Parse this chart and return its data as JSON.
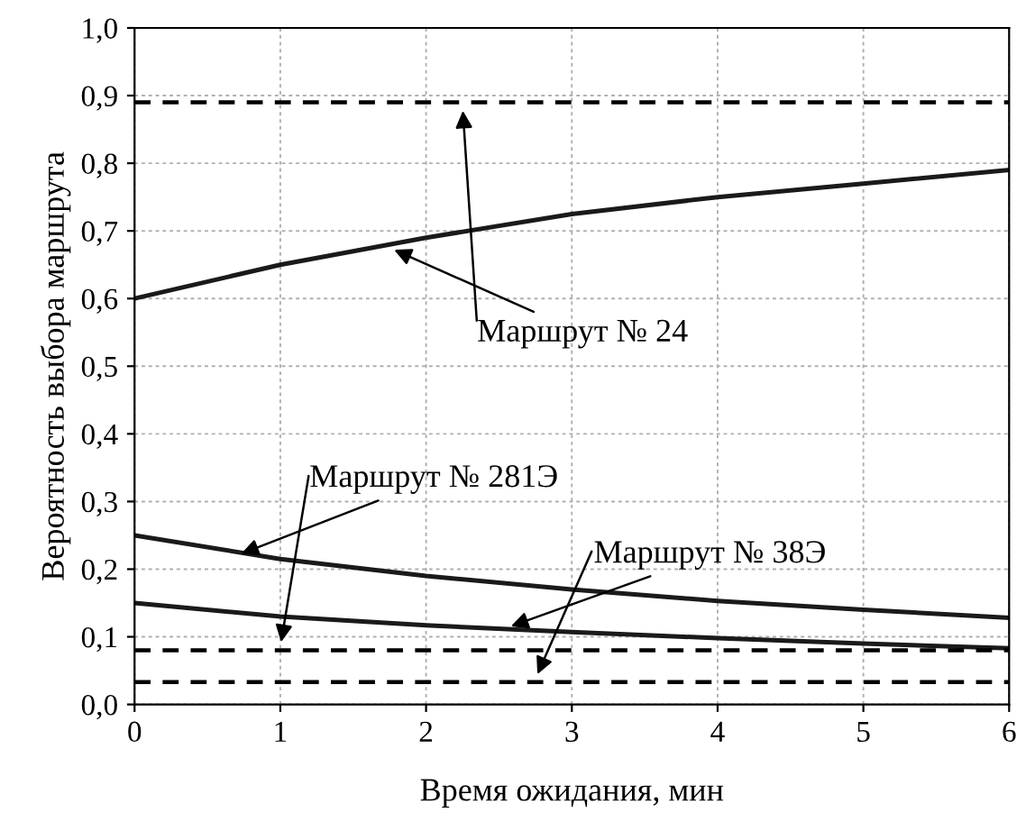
{
  "chart_data": {
    "type": "line",
    "xlabel": "Время ожидания, мин",
    "ylabel": "Вероятность выбора маршрута",
    "x": [
      0,
      1,
      2,
      3,
      4,
      5,
      6
    ],
    "series": [
      {
        "color": "#1a1a1a",
        "values": [
          0.6,
          0.65,
          0.69,
          0.725,
          0.75,
          0.77,
          0.79
        ]
      },
      {
        "color": "#1a1a1a",
        "values": [
          0.25,
          0.215,
          0.19,
          0.17,
          0.153,
          0.14,
          0.128
        ]
      },
      {
        "color": "#1a1a1a",
        "values": [
          0.15,
          0.13,
          0.117,
          0.107,
          0.098,
          0.09,
          0.083
        ]
      }
    ],
    "ref_lines": [
      {
        "axis": "y",
        "value": 0.89,
        "color": "#000000",
        "line_style": "dashed"
      },
      {
        "axis": "y",
        "value": 0.08,
        "color": "#000000",
        "line_style": "dashed"
      },
      {
        "axis": "y",
        "value": 0.033,
        "color": "#000000",
        "line_style": "dashed"
      }
    ],
    "annotations": [
      {
        "text": "Маршрут № 24",
        "x": 1.75,
        "y": 0.675
      },
      {
        "text": "Маршрут № 281Э",
        "x": 0.7,
        "y": 0.22
      },
      {
        "text": "Маршрут № 38Э",
        "x": 2.55,
        "y": 0.113
      }
    ],
    "xlim": [
      0,
      6
    ],
    "ylim": [
      0,
      1.0
    ],
    "xticks": [
      0,
      1,
      2,
      3,
      4,
      5,
      6
    ],
    "yticks": [
      {
        "value": 0,
        "label": "0,0"
      },
      {
        "value": 0.1,
        "label": "0,1"
      },
      {
        "value": 0.2,
        "label": "0,2"
      },
      {
        "value": 0.3,
        "label": "0,3"
      },
      {
        "value": 0.4,
        "label": "0,4"
      },
      {
        "value": 0.5,
        "label": "0,5"
      },
      {
        "value": 0.6,
        "label": "0,6"
      },
      {
        "value": 0.7,
        "label": "0,7"
      },
      {
        "value": 0.8,
        "label": "0,8"
      },
      {
        "value": 0.9,
        "label": "0,9"
      },
      {
        "value": 1.0,
        "label": "1,0"
      }
    ],
    "grid": true,
    "legend": false,
    "marker": "none",
    "line_style": "solid"
  }
}
